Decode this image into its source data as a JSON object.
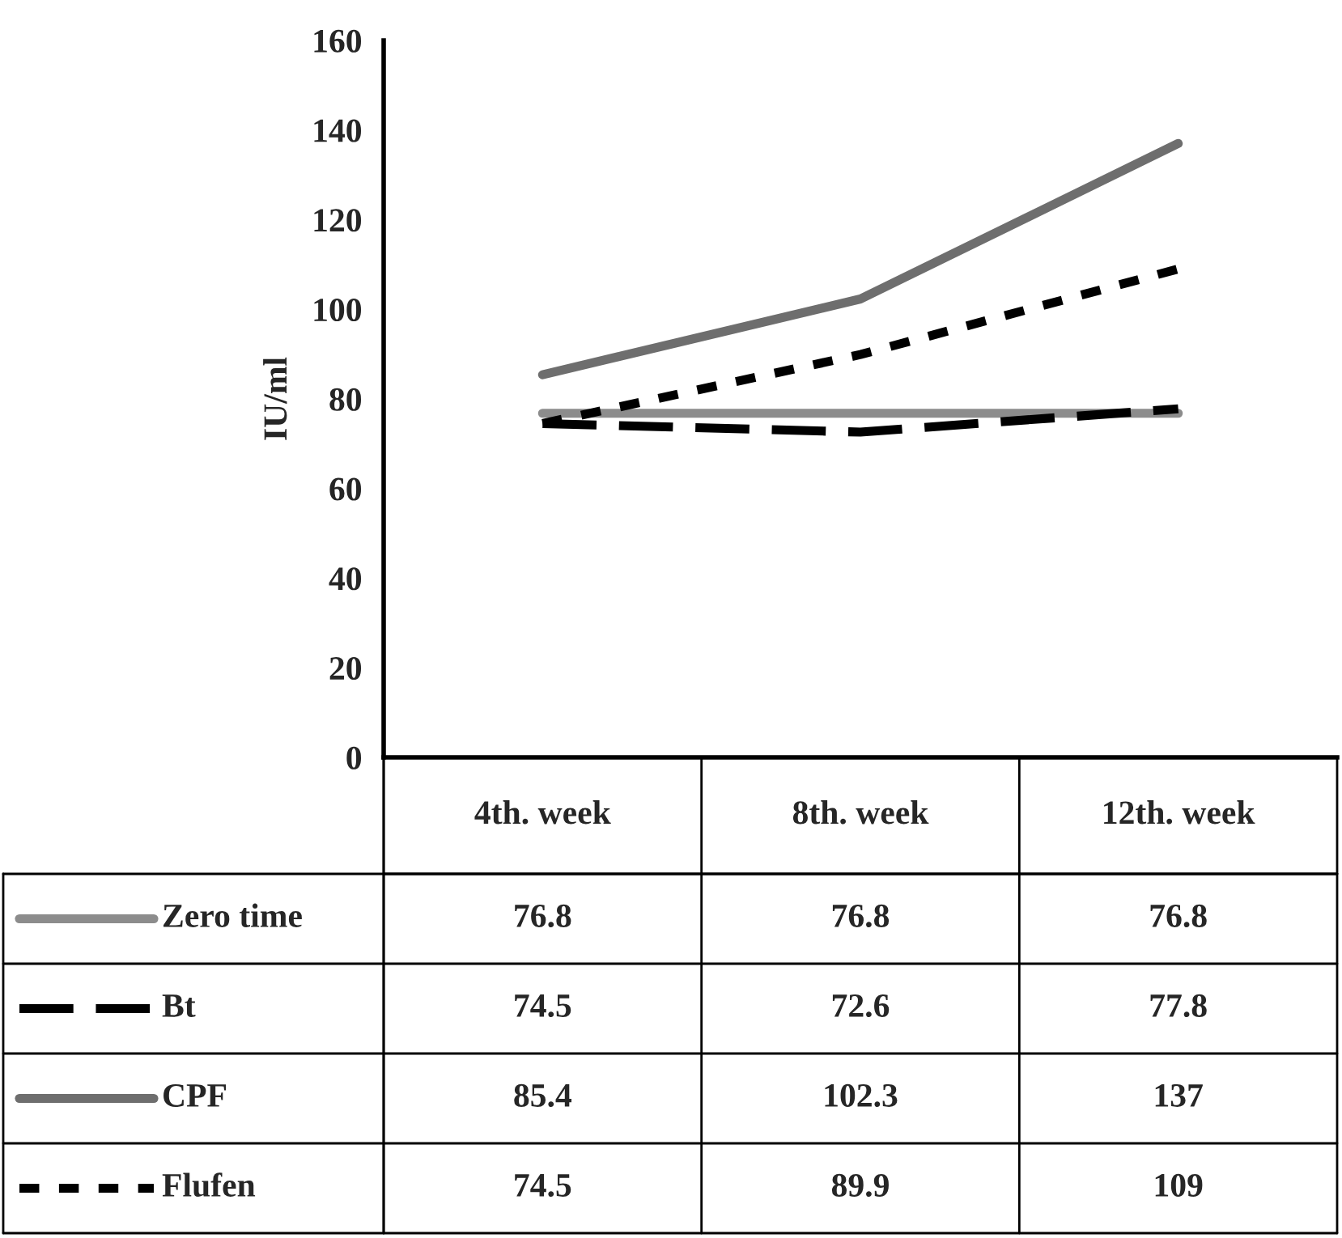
{
  "chart_data": {
    "type": "line",
    "ylabel": "IU/ml",
    "categories": [
      "4th. week",
      "8th. week",
      "12th. week"
    ],
    "series": [
      {
        "name": "Zero time",
        "color": "#8c8c8c",
        "line_style": "solid",
        "values": [
          76.8,
          76.8,
          76.8
        ]
      },
      {
        "name": "Bt",
        "color": "#000000",
        "line_style": "dashed",
        "values": [
          74.5,
          72.6,
          77.8
        ]
      },
      {
        "name": "CPF",
        "color": "#6e6e6e",
        "line_style": "solid",
        "values": [
          85.4,
          102.3,
          137
        ]
      },
      {
        "name": "Flufen",
        "color": "#000000",
        "line_style": "dotted",
        "values": [
          74.5,
          89.9,
          109
        ]
      }
    ],
    "ylim": [
      0,
      160
    ],
    "yticks": [
      0,
      20,
      40,
      60,
      80,
      100,
      120,
      140,
      160
    ],
    "grid": false,
    "legend": "bottom",
    "marker": "none",
    "data_labels": true
  }
}
